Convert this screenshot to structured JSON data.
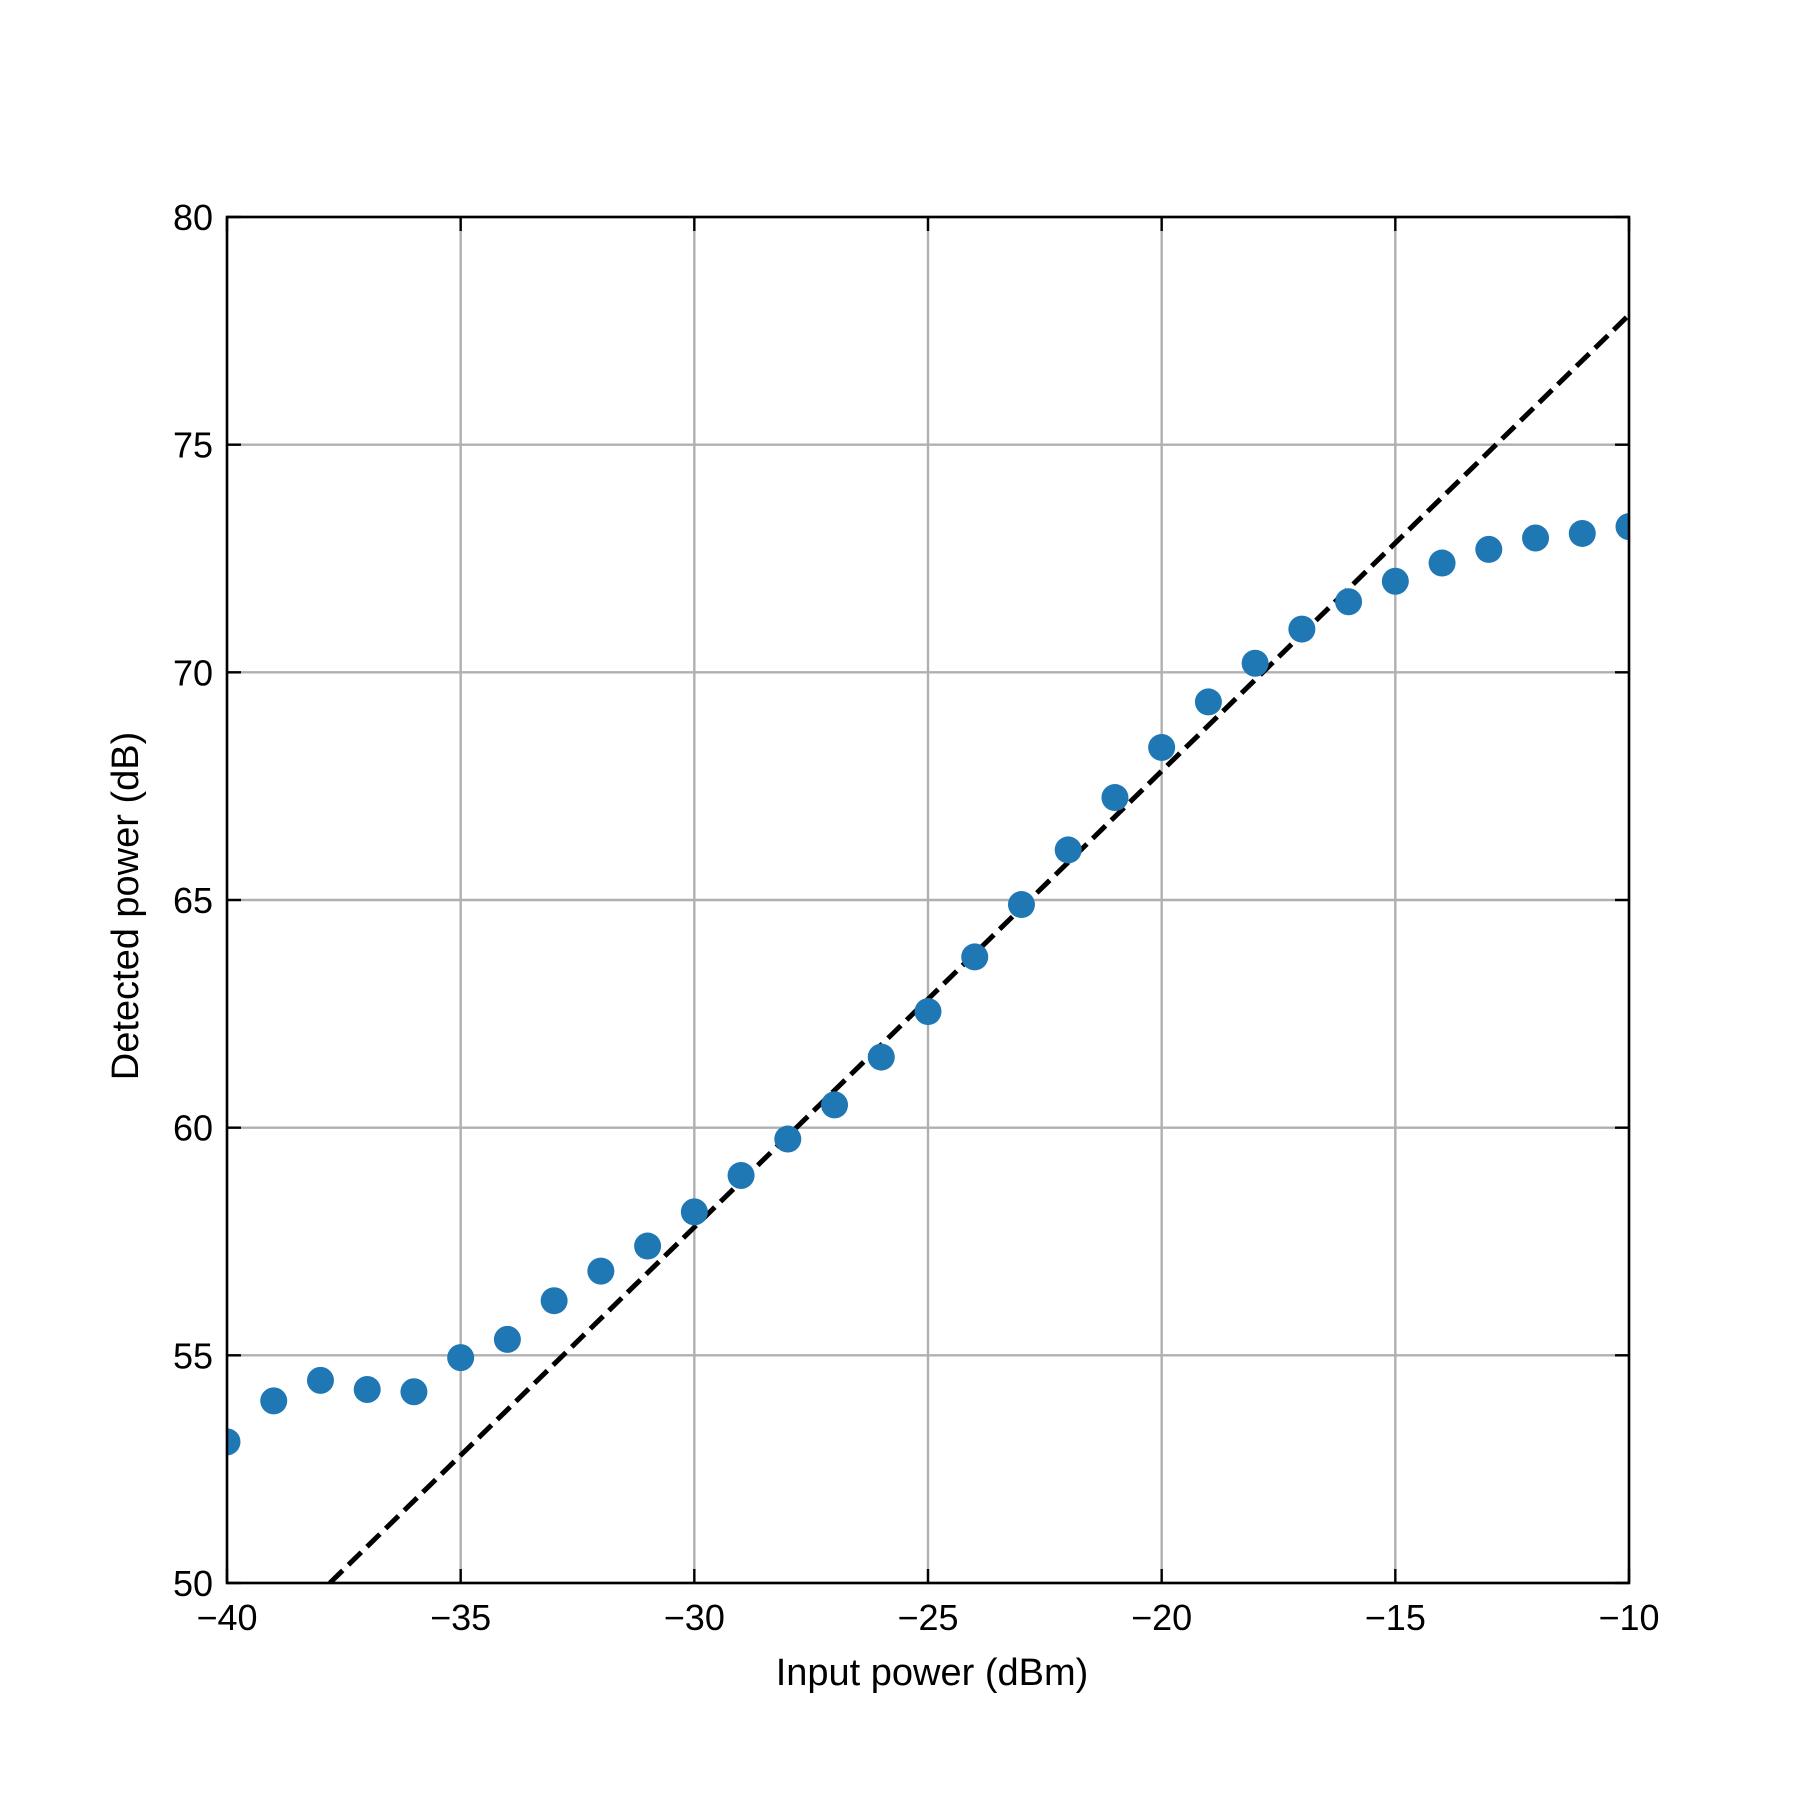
{
  "chart_data": {
    "type": "scatter",
    "title": "",
    "xlabel": "Input power (dBm)",
    "ylabel": "Detected power (dB)",
    "xlim": [
      -40,
      -10
    ],
    "ylim": [
      50,
      80
    ],
    "x_ticks": [
      -40,
      -35,
      -30,
      -25,
      -20,
      -15,
      -10
    ],
    "x_tick_labels": [
      "−40",
      "−35",
      "−30",
      "−25",
      "−20",
      "−15",
      "−10"
    ],
    "y_ticks": [
      50,
      55,
      60,
      65,
      70,
      75,
      80
    ],
    "y_tick_labels": [
      "50",
      "55",
      "60",
      "65",
      "70",
      "75",
      "80"
    ],
    "grid": true,
    "series": [
      {
        "kind": "scatter",
        "color": "#1f77b4",
        "x": [
          -40,
          -39,
          -38,
          -37,
          -36,
          -35,
          -34,
          -33,
          -32,
          -31,
          -30,
          -29,
          -28,
          -27,
          -26,
          -25,
          -24,
          -23,
          -22,
          -21,
          -20,
          -19,
          -18,
          -17,
          -16,
          -15,
          -14,
          -13,
          -12,
          -11,
          -10
        ],
        "y": [
          53.1,
          54.0,
          54.45,
          54.25,
          54.2,
          54.95,
          55.35,
          56.2,
          56.85,
          57.4,
          58.15,
          58.95,
          59.75,
          60.5,
          61.55,
          62.55,
          63.75,
          64.9,
          66.1,
          67.25,
          68.35,
          69.35,
          70.2,
          70.95,
          71.55,
          72.0,
          72.4,
          72.7,
          72.95,
          73.05,
          73.2
        ]
      },
      {
        "kind": "line",
        "style": "dashed",
        "color": "#000000",
        "x": [
          -37.8,
          -10
        ],
        "y": [
          50,
          77.85
        ]
      }
    ]
  }
}
